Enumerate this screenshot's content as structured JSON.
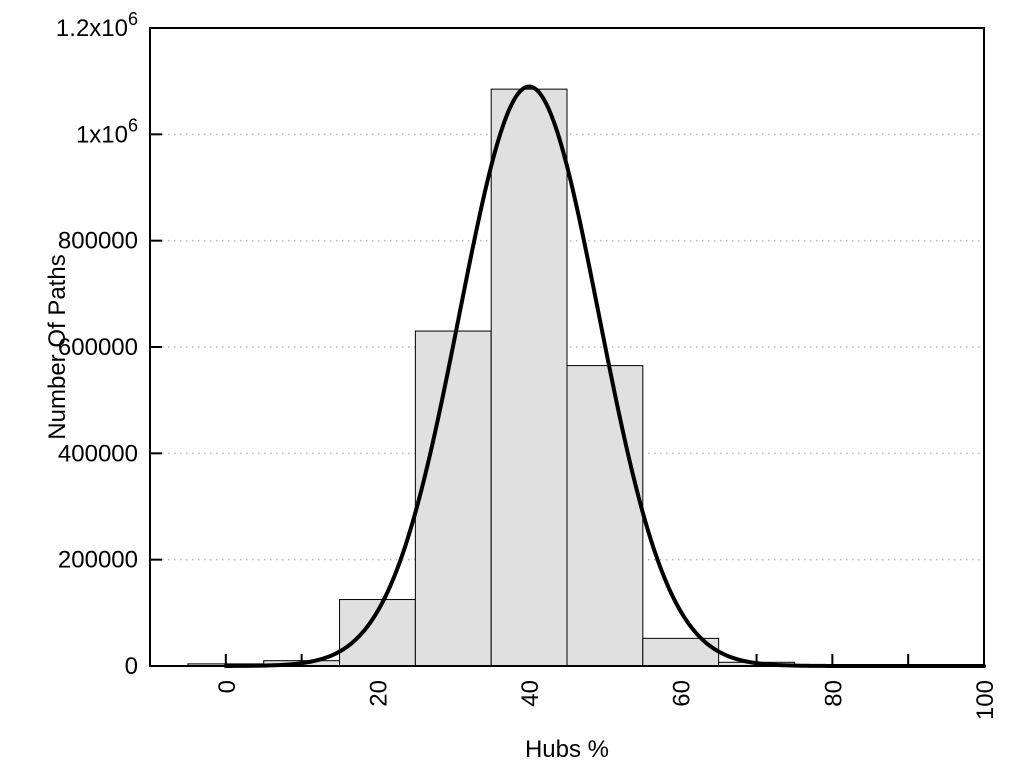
{
  "chart_data": {
    "type": "bar",
    "subtype": "histogram-with-gaussian-fit",
    "title": "",
    "xlabel": "Hubs %",
    "ylabel": "Number Of Paths",
    "xlim": [
      -10,
      100
    ],
    "ylim": [
      0,
      1200000
    ],
    "grid": "horizontal-dotted",
    "legend": "none",
    "bars": {
      "bin_width": 10,
      "centers": [
        0,
        10,
        20,
        30,
        40,
        50,
        60,
        70,
        80,
        90
      ],
      "values": [
        4000,
        10000,
        125000,
        630000,
        1085000,
        565000,
        52000,
        7000,
        2000,
        800
      ]
    },
    "fit_curve": {
      "shape": "gaussian",
      "amplitude": 1090000,
      "mean": 40,
      "sigma": 9.2,
      "x_start": 0,
      "x_end": 100
    },
    "x_ticks": {
      "values": [
        0,
        10,
        20,
        30,
        40,
        50,
        60,
        70,
        80,
        90,
        100
      ],
      "labeled_values": [
        0,
        20,
        40,
        60,
        80,
        100
      ],
      "labels": [
        "0",
        "20",
        "40",
        "60",
        "80",
        "100"
      ],
      "label_rotation_deg": -90
    },
    "y_ticks": {
      "values": [
        0,
        200000,
        400000,
        600000,
        800000,
        1000000,
        1200000
      ],
      "labels": [
        "0",
        "200000",
        "400000",
        "600000",
        "800000",
        "1x10^6",
        "1.2x10^6"
      ]
    },
    "colors": {
      "bar_fill": "#e0e0e0",
      "bar_stroke": "#000000",
      "curve": "#000000",
      "grid": "#b8b8b8",
      "axis": "#000000",
      "background": "#ffffff",
      "text": "#000000"
    }
  }
}
